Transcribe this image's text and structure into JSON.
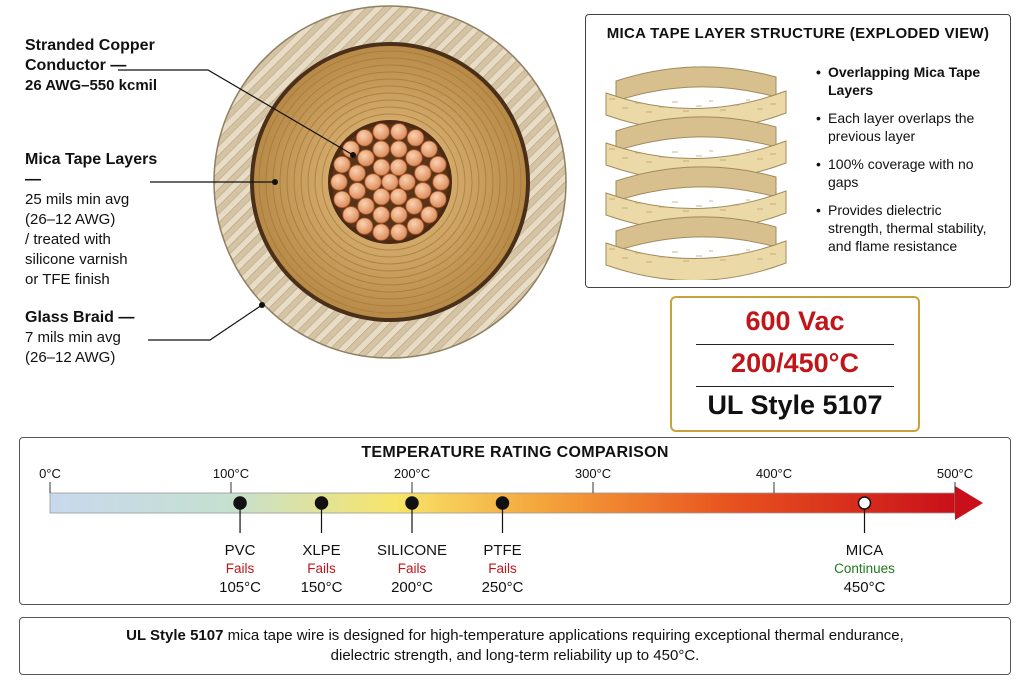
{
  "callouts": {
    "conductor": {
      "title": "Stranded Copper Conductor —",
      "detail": "26 AWG–550 kcmil"
    },
    "mica": {
      "title": "Mica Tape Layers —",
      "lines": [
        "25 mils min avg",
        "(26–12 AWG)",
        "/ treated with",
        "silicone varnish",
        "or TFE finish"
      ]
    },
    "braid": {
      "title": "Glass Braid —",
      "lines": [
        "7 mils min avg",
        "(26–12 AWG)"
      ]
    }
  },
  "mica_panel": {
    "title": "MICA TAPE LAYER STRUCTURE (EXPLODED VIEW)",
    "bullets": [
      "Overlapping Mica Tape Layers",
      "Each layer overlaps the previous layer",
      "100% coverage with no gaps",
      "Provides dielectric strength, thermal stability, and flame resistance"
    ]
  },
  "rating": {
    "voltage": "600 Vac",
    "temperature": "200/450°C",
    "style": "UL Style 5107"
  },
  "temperature_scale": {
    "title": "TEMPERATURE RATING COMPARISON",
    "min": 0,
    "max": 500,
    "ticks": [
      "0°C",
      "100°C",
      "200°C",
      "300°C",
      "400°C",
      "500°C"
    ],
    "materials": [
      {
        "name": "PVC",
        "status": "Fails",
        "temp": 105,
        "label": "105°C"
      },
      {
        "name": "XLPE",
        "status": "Fails",
        "temp": 150,
        "label": "150°C"
      },
      {
        "name": "SILICONE",
        "status": "Fails",
        "temp": 200,
        "label": "200°C"
      },
      {
        "name": "PTFE",
        "status": "Fails",
        "temp": 250,
        "label": "250°C"
      },
      {
        "name": "MICA",
        "status": "Continues",
        "temp": 450,
        "label": "450°C"
      }
    ]
  },
  "footer": {
    "bold": "UL Style 5107",
    "text1": " mica tape wire is designed for high-temperature applications requiring exceptional thermal endurance,",
    "text2": "dielectric strength, and long-term reliability up to 450°C."
  },
  "colors": {
    "accent_red": "#c0161a",
    "fail_red": "#c0161a",
    "continue_green": "#1e7a1e",
    "gold_border": "#c9a23c",
    "mica_tan": "#c9a468",
    "copper": "#e59a6a"
  }
}
